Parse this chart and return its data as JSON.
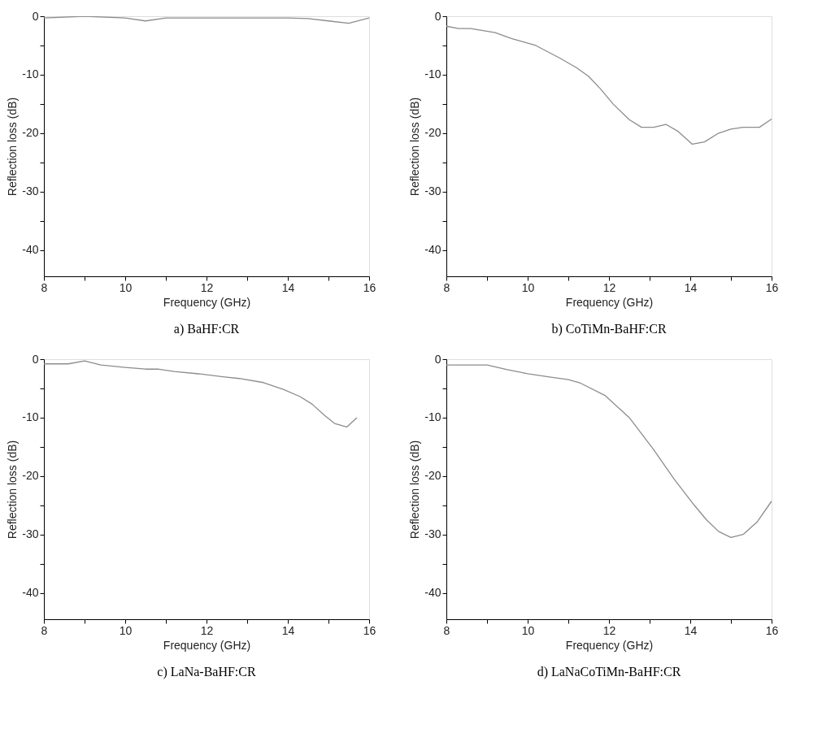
{
  "chart_data": [
    {
      "type": "line",
      "title": "a) BaHF:CR",
      "xlabel": "Frequency (GHz)",
      "ylabel": "Reflection loss (dB)",
      "xlim": [
        8,
        16
      ],
      "ylim": [
        -44.5,
        0
      ],
      "xticks": [
        8,
        {
          "value": 9,
          "label": null
        },
        10,
        {
          "value": 11,
          "label": null
        },
        12,
        {
          "value": 13,
          "label": null
        },
        14,
        {
          "value": 15,
          "label": null
        },
        16
      ],
      "yticks": [
        -40,
        {
          "value": -35,
          "label": null
        },
        -30,
        {
          "value": -25,
          "label": null
        },
        -20,
        {
          "value": -15,
          "label": null
        },
        -10,
        {
          "value": -5,
          "label": null
        },
        0
      ],
      "grid": false,
      "legend": false,
      "marker": "none",
      "line_style": "solid",
      "series": [
        {
          "color": "#8c8c8c",
          "x": [
            8,
            9,
            10,
            10.5,
            11,
            12,
            13,
            14,
            14.5,
            15,
            15.5,
            16
          ],
          "values": [
            -0.3,
            0,
            -0.3,
            -0.8,
            -0.3,
            -0.3,
            -0.3,
            -0.3,
            -0.4,
            -0.8,
            -1.2,
            -0.3
          ]
        }
      ]
    },
    {
      "type": "line",
      "title": "b) CoTiMn-BaHF:CR",
      "xlabel": "Frequency (GHz)",
      "ylabel": "Reflection loss (dB)",
      "xlim": [
        8,
        16
      ],
      "ylim": [
        -44.5,
        0
      ],
      "xticks": [
        8,
        {
          "value": 9,
          "label": null
        },
        10,
        {
          "value": 11,
          "label": null
        },
        12,
        {
          "value": 13,
          "label": null
        },
        14,
        {
          "value": 15,
          "label": null
        },
        16
      ],
      "yticks": [
        -40,
        {
          "value": -35,
          "label": null
        },
        -30,
        {
          "value": -25,
          "label": null
        },
        -20,
        {
          "value": -15,
          "label": null
        },
        -10,
        {
          "value": -5,
          "label": null
        },
        0
      ],
      "grid": false,
      "legend": false,
      "marker": "none",
      "line_style": "solid",
      "series": [
        {
          "color": "#8c8c8c",
          "x": [
            8,
            8.3,
            8.6,
            9.2,
            9.6,
            10.2,
            10.8,
            11.2,
            11.5,
            11.8,
            12.1,
            12.5,
            12.8,
            13.1,
            13.4,
            13.7,
            14.05,
            14.35,
            14.7,
            15.0,
            15.3,
            15.7,
            16
          ],
          "values": [
            -1.7,
            -2.1,
            -2.1,
            -2.8,
            -3.8,
            -5.0,
            -7.2,
            -8.8,
            -10.3,
            -12.5,
            -15.0,
            -17.7,
            -19.0,
            -19.0,
            -18.5,
            -19.7,
            -21.9,
            -21.5,
            -20.0,
            -19.3,
            -19.0,
            -19.0,
            -17.6
          ]
        }
      ]
    },
    {
      "type": "line",
      "title": "c) LaNa-BaHF:CR",
      "xlabel": "Frequency (GHz)",
      "ylabel": "Reflection loss (dB)",
      "xlim": [
        8,
        16
      ],
      "ylim": [
        -44.5,
        0
      ],
      "xticks": [
        8,
        {
          "value": 9,
          "label": null
        },
        10,
        {
          "value": 11,
          "label": null
        },
        12,
        {
          "value": 13,
          "label": null
        },
        14,
        {
          "value": 15,
          "label": null
        },
        16
      ],
      "yticks": [
        -40,
        {
          "value": -35,
          "label": null
        },
        -30,
        {
          "value": -25,
          "label": null
        },
        -20,
        {
          "value": -15,
          "label": null
        },
        -10,
        {
          "value": -5,
          "label": null
        },
        0
      ],
      "grid": false,
      "legend": false,
      "marker": "none",
      "line_style": "solid",
      "series": [
        {
          "color": "#8c8c8c",
          "x": [
            8,
            8.6,
            9.0,
            9.4,
            10,
            10.5,
            10.8,
            11.2,
            11.8,
            12.4,
            12.8,
            13.4,
            13.9,
            14.3,
            14.6,
            14.9,
            15.15,
            15.45,
            15.7
          ],
          "values": [
            -0.8,
            -0.8,
            -0.3,
            -1.0,
            -1.4,
            -1.7,
            -1.7,
            -2.1,
            -2.5,
            -3.0,
            -3.3,
            -4.0,
            -5.2,
            -6.4,
            -7.7,
            -9.6,
            -11.0,
            -11.6,
            -10.0
          ]
        }
      ]
    },
    {
      "type": "line",
      "title": "d) LaNaCoTiMn-BaHF:CR",
      "xlabel": "Frequency (GHz)",
      "ylabel": "Reflection loss (dB)",
      "xlim": [
        8,
        16
      ],
      "ylim": [
        -44.5,
        0
      ],
      "xticks": [
        8,
        {
          "value": 9,
          "label": null
        },
        10,
        {
          "value": 11,
          "label": null
        },
        12,
        {
          "value": 13,
          "label": null
        },
        14,
        {
          "value": 15,
          "label": null
        },
        16
      ],
      "yticks": [
        -40,
        {
          "value": -35,
          "label": null
        },
        -30,
        {
          "value": -25,
          "label": null
        },
        -20,
        {
          "value": -15,
          "label": null
        },
        -10,
        {
          "value": -5,
          "label": null
        },
        0
      ],
      "grid": false,
      "legend": false,
      "marker": "none",
      "line_style": "solid",
      "series": [
        {
          "color": "#8c8c8c",
          "x": [
            8,
            9,
            9.5,
            10,
            10.5,
            11,
            11.3,
            11.9,
            12.5,
            13.1,
            13.6,
            14.1,
            14.4,
            14.7,
            15.0,
            15.3,
            15.65,
            16
          ],
          "values": [
            -1.0,
            -1.0,
            -1.8,
            -2.5,
            -3.0,
            -3.5,
            -4.1,
            -6.2,
            -10.0,
            -15.5,
            -20.5,
            -25.0,
            -27.5,
            -29.5,
            -30.5,
            -30.0,
            -27.8,
            -24.3
          ]
        }
      ]
    }
  ]
}
